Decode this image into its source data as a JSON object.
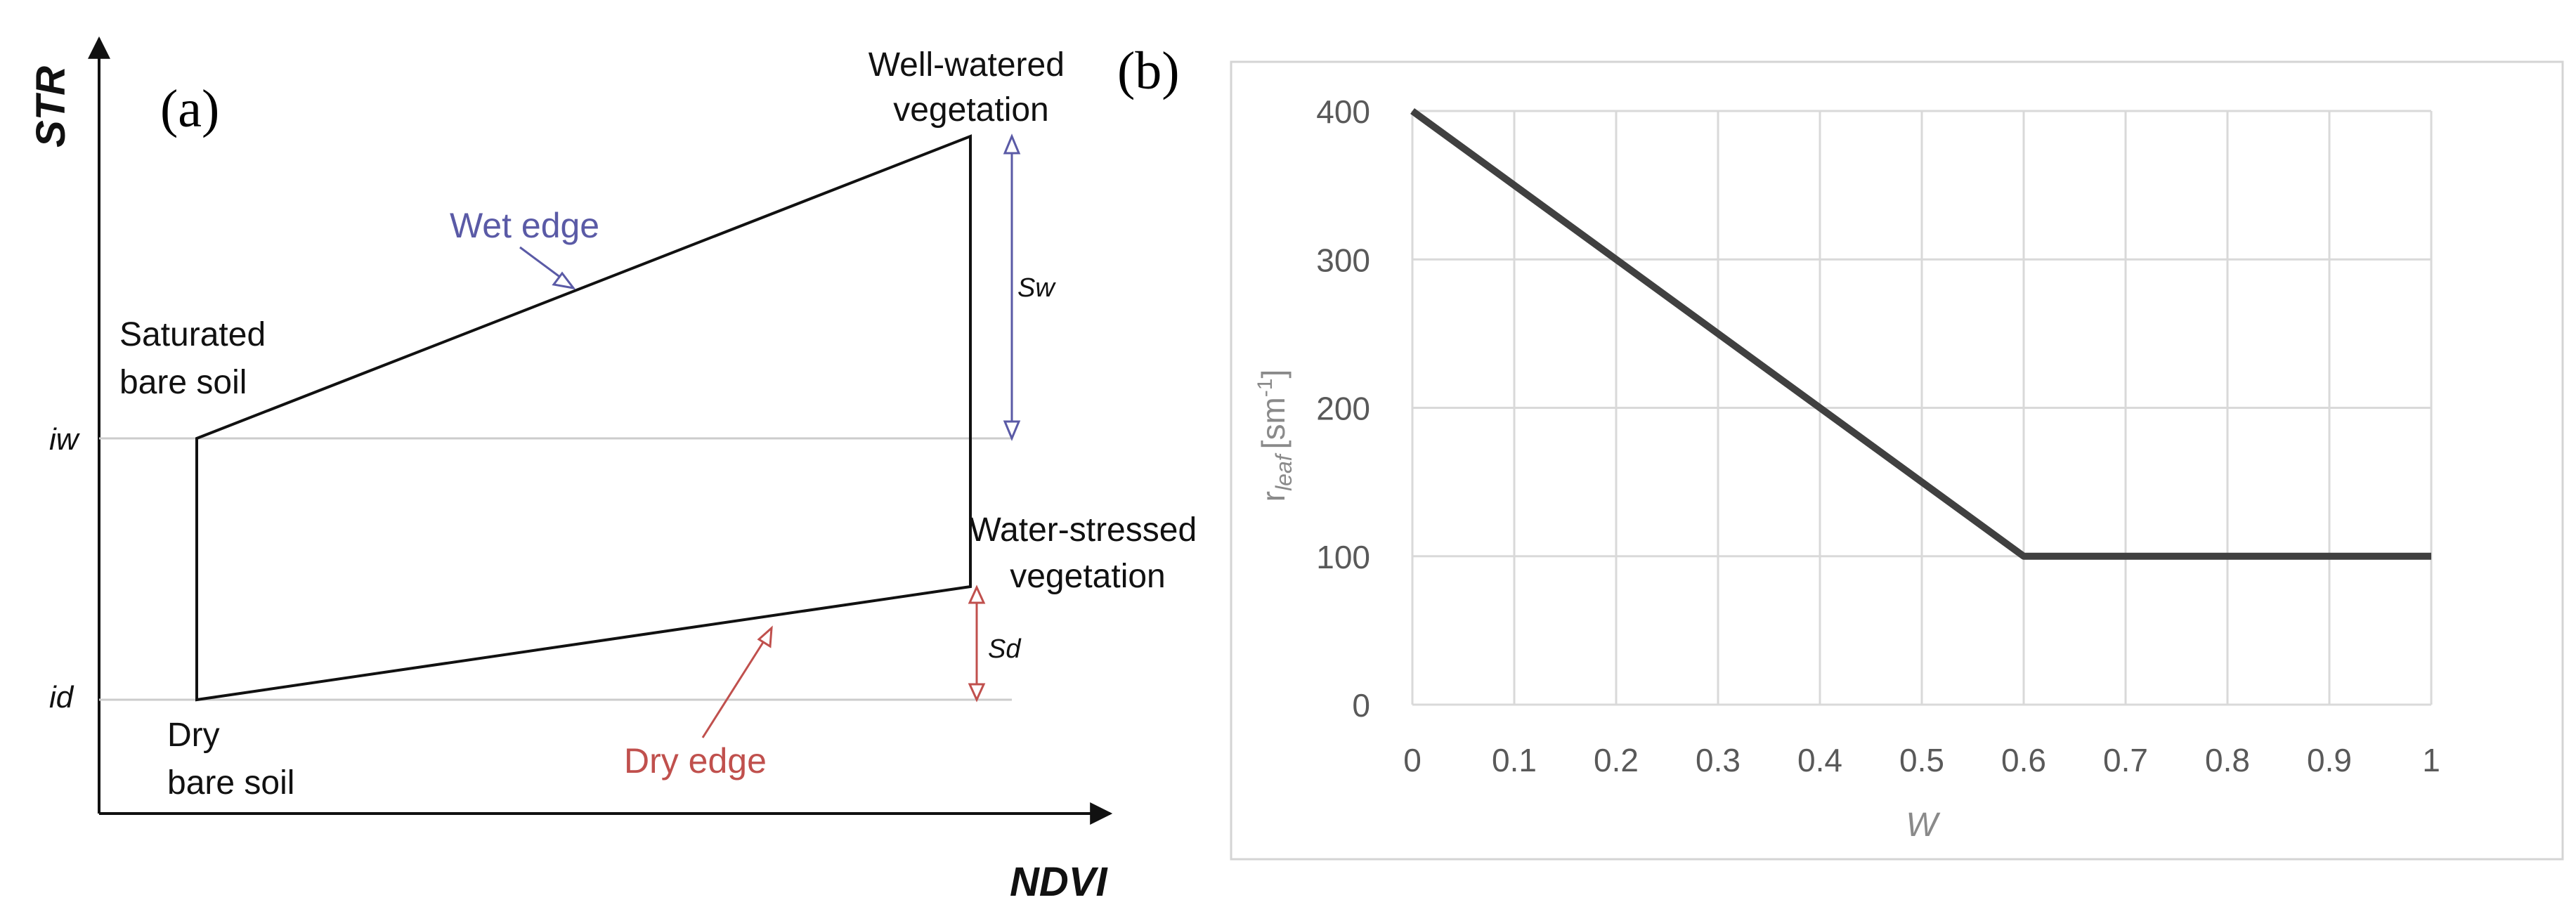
{
  "panel_a": {
    "label": "(a)",
    "y_axis_label": "STR",
    "x_axis_label": "NDVI",
    "wet_edge_label": "Wet edge",
    "dry_edge_label": "Dry edge",
    "saturated_soil": [
      "Saturated",
      "bare soil"
    ],
    "dry_soil": [
      "Dry",
      "bare soil"
    ],
    "well_watered": [
      "Well-watered",
      "vegetation"
    ],
    "water_stressed": [
      "Water-stressed",
      "vegetation"
    ],
    "sw_label": "Sw",
    "sd_label": "Sd",
    "iw_label": "iw",
    "id_label": "id",
    "colors": {
      "wet": "#5a5aa6",
      "dry": "#c0504d",
      "line": "#111111",
      "guide": "#cccccc"
    }
  },
  "panel_b": {
    "label": "(b)",
    "chart_data": {
      "type": "line",
      "title": "",
      "xlabel": "W",
      "ylabel_main": "r",
      "ylabel_sub": "leaf",
      "ylabel_unit_prefix": "[sm",
      "ylabel_unit_exp": "-1",
      "ylabel_unit_suffix": "]",
      "xlim": [
        0,
        1
      ],
      "ylim": [
        0,
        400
      ],
      "x_ticks": [
        "0",
        "0.1",
        "0.2",
        "0.3",
        "0.4",
        "0.5",
        "0.6",
        "0.7",
        "0.8",
        "0.9",
        "1"
      ],
      "y_ticks": [
        "0",
        "100",
        "200",
        "300",
        "400"
      ],
      "grid": true,
      "series": [
        {
          "name": "r_leaf",
          "x": [
            0,
            0.6,
            1
          ],
          "y": [
            400,
            100,
            100
          ],
          "color": "#404040"
        }
      ]
    }
  }
}
